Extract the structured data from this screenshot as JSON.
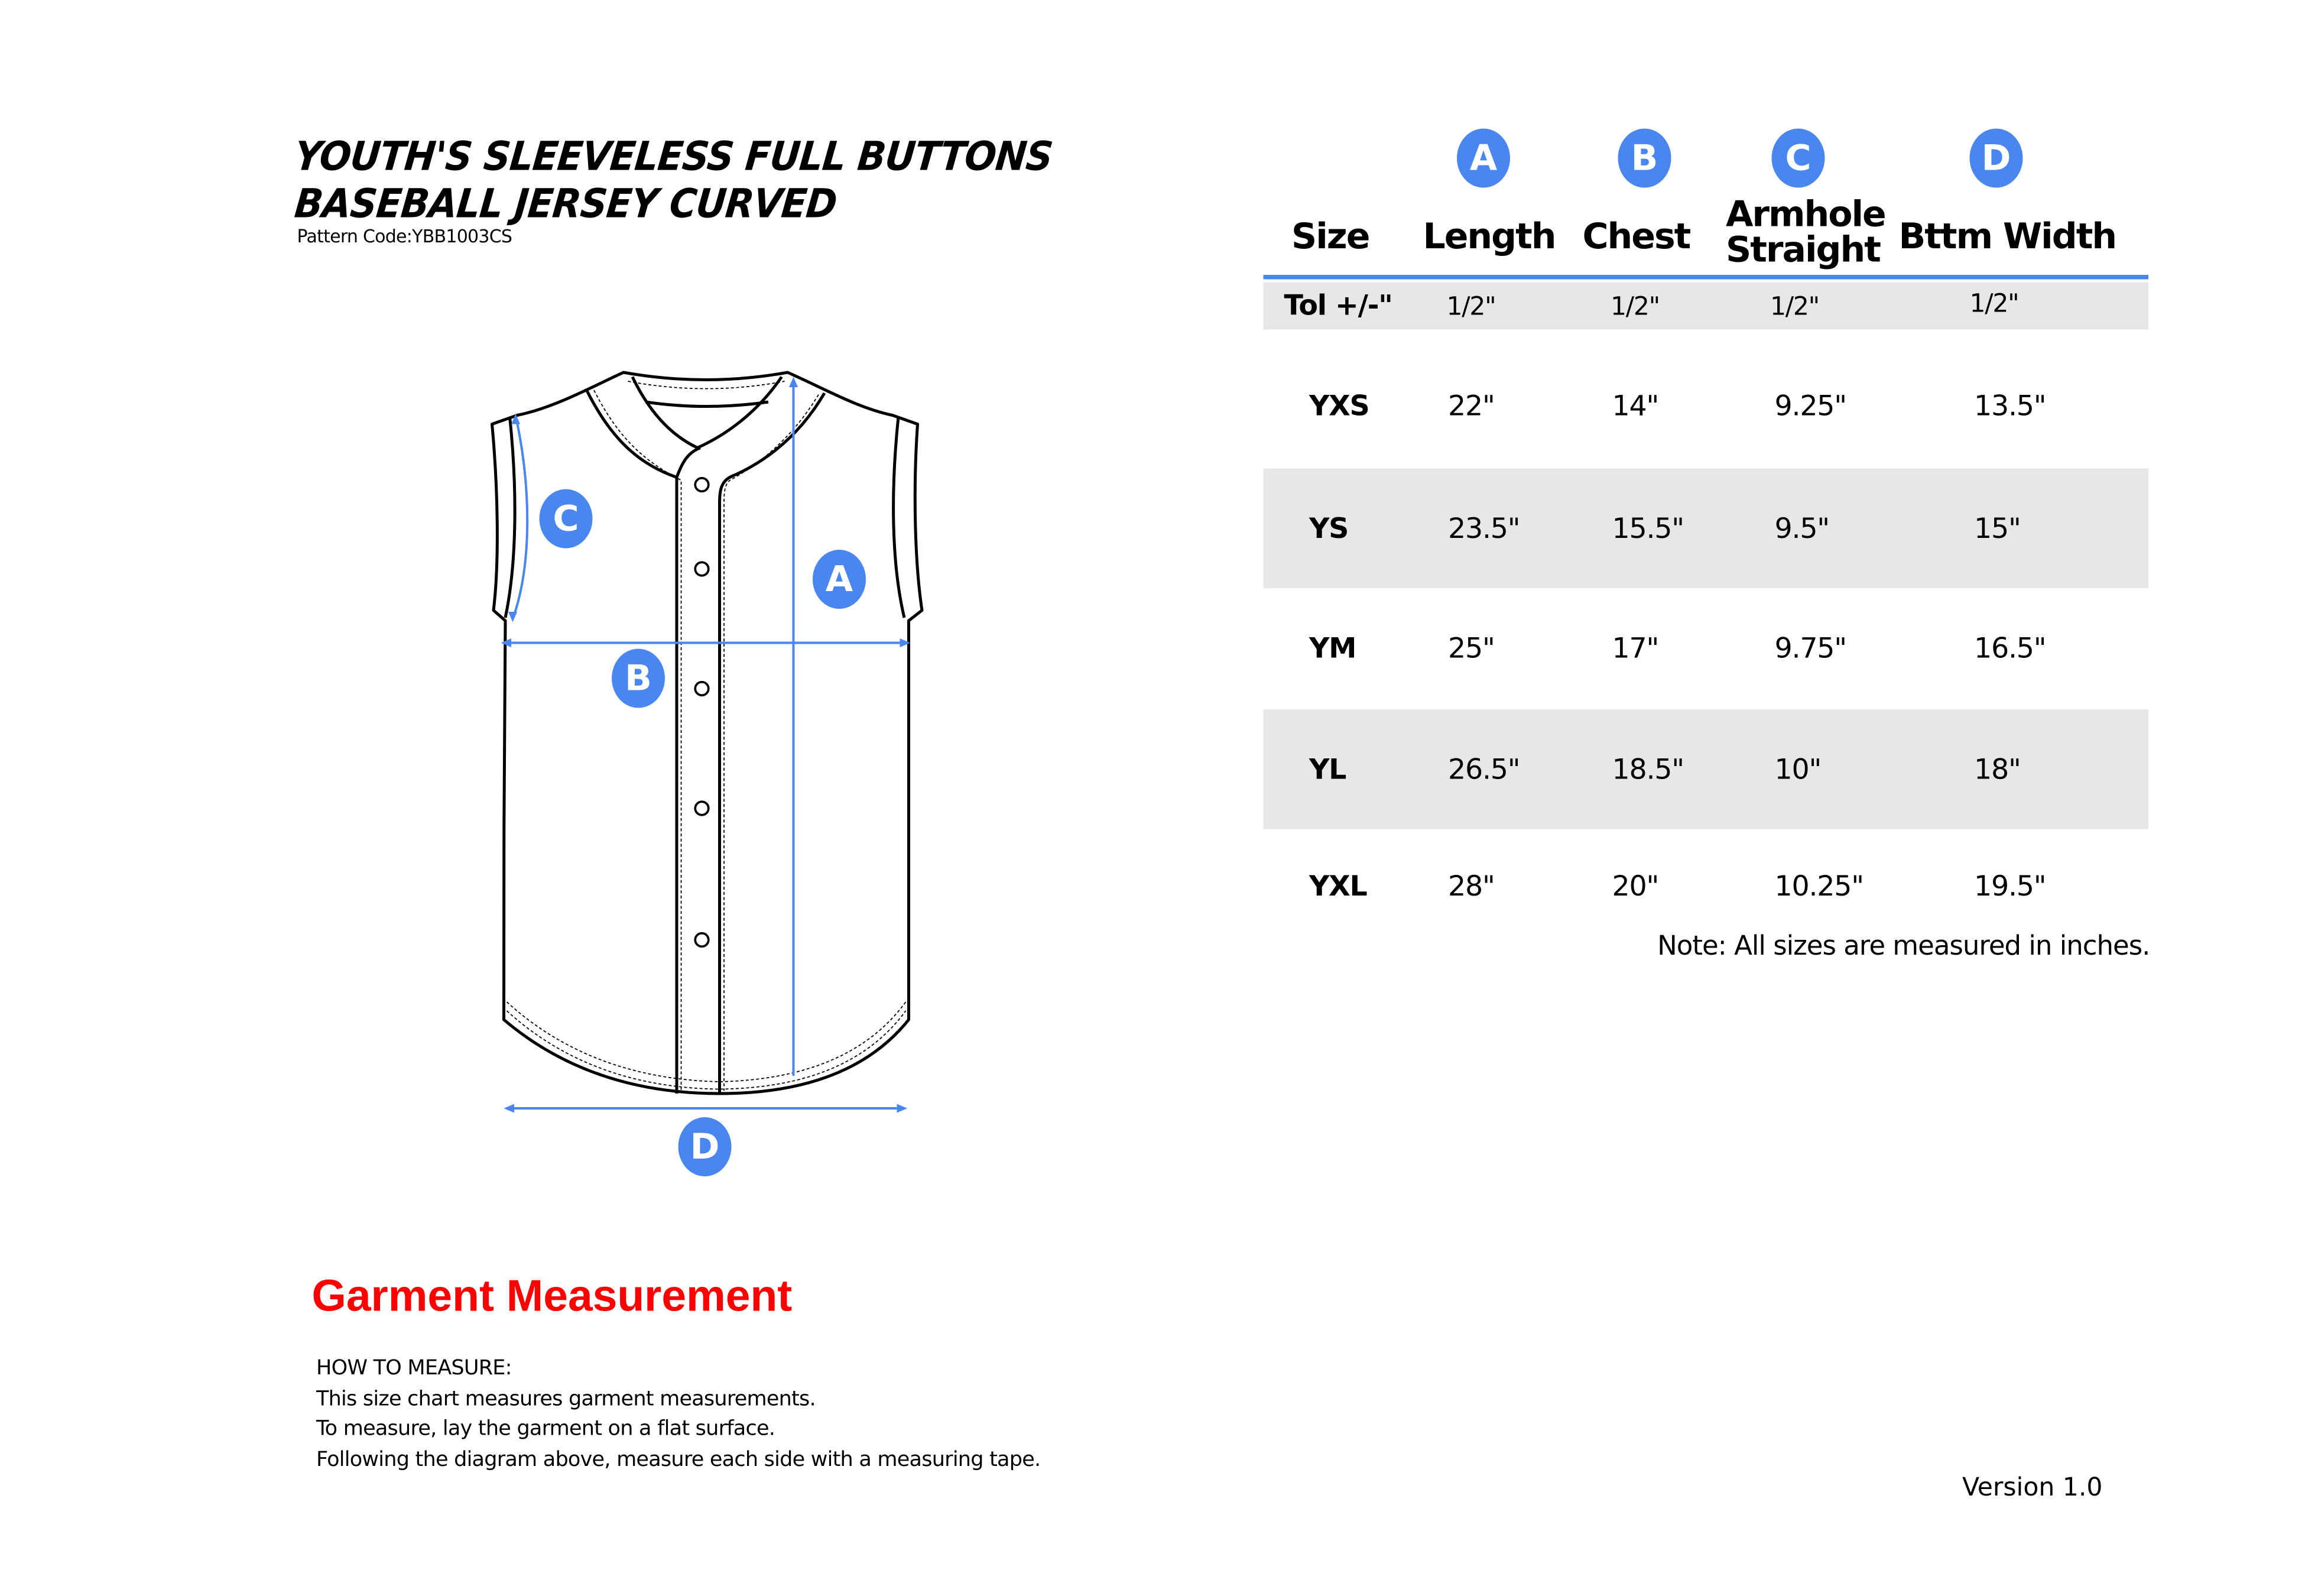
{
  "title": {
    "line1": "YOUTH'S SLEEVELESS FULL BUTTONS",
    "line2": "BASEBALL JERSEY CURVED",
    "pattern_code": "Pattern Code:YBB1003CS"
  },
  "diagram": {
    "labels": [
      "A",
      "B",
      "C",
      "D"
    ],
    "accent_color": "#4a86f0"
  },
  "table": {
    "badges": [
      "A",
      "B",
      "C",
      "D"
    ],
    "headers": {
      "size": "Size",
      "length": "Length",
      "chest": "Chest",
      "armhole_line1": "Armhole",
      "armhole_line2": "Straight",
      "bttm_width": "Bttm Width"
    },
    "tolerance": {
      "label": "Tol +/-\"",
      "values": [
        "1/2\"",
        "1/2\"",
        "1/2\"",
        "1/2\""
      ]
    },
    "rows": [
      {
        "size": "YXS",
        "values": [
          "22\"",
          "14\"",
          "9.25\"",
          "13.5\""
        ]
      },
      {
        "size": "YS",
        "values": [
          "23.5\"",
          "15.5\"",
          "9.5\"",
          "15\""
        ]
      },
      {
        "size": "YM",
        "values": [
          "25\"",
          "17\"",
          "9.75\"",
          "16.5\""
        ]
      },
      {
        "size": "YL",
        "values": [
          "26.5\"",
          "18.5\"",
          "10\"",
          "18\""
        ]
      },
      {
        "size": "YXL",
        "values": [
          "28\"",
          "20\"",
          "10.25\"",
          "19.5\""
        ]
      }
    ],
    "note": "Note: All sizes are measured in inches."
  },
  "measurement": {
    "heading": "Garment Measurement",
    "heading_color": "#ff0000",
    "lines": [
      "HOW TO MEASURE:",
      "This size chart measures garment measurements.",
      "To measure, lay the garment on a flat surface.",
      "Following the diagram above, measure each side with a measuring tape."
    ]
  },
  "version": "Version 1.0"
}
